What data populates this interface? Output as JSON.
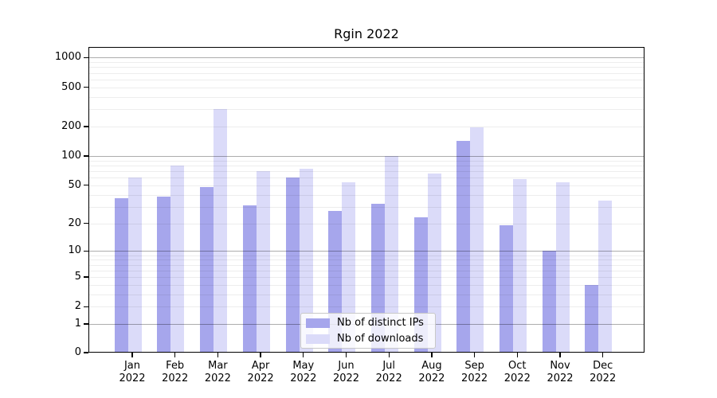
{
  "title": "Rgin 2022",
  "chart_data": {
    "type": "bar",
    "title": "Rgin 2022",
    "year": "2022",
    "categories": [
      "Jan",
      "Feb",
      "Mar",
      "Apr",
      "May",
      "Jun",
      "Jul",
      "Aug",
      "Sep",
      "Oct",
      "Nov",
      "Dec"
    ],
    "series": [
      {
        "name": "Nb of distinct IPs",
        "color": "#a6a6ec",
        "values": [
          37,
          38,
          48,
          31,
          60,
          27,
          32,
          23,
          143,
          19,
          10,
          4
        ]
      },
      {
        "name": "Nb of downloads",
        "color": "#dbdbf9",
        "values": [
          60,
          80,
          300,
          70,
          74,
          54,
          100,
          66,
          197,
          58,
          54,
          35
        ]
      }
    ],
    "xlabel": "",
    "ylabel": "",
    "yscale": "log10(1+y)",
    "yticks": [
      0,
      1,
      2,
      5,
      10,
      20,
      50,
      100,
      200,
      500,
      1000
    ],
    "ylim": [
      0,
      1100
    ],
    "grid": "horizontal major at 1/10/100/1000, minor log subdivisions, drawn over bars",
    "legend_position": "bottom-center inside plot"
  }
}
